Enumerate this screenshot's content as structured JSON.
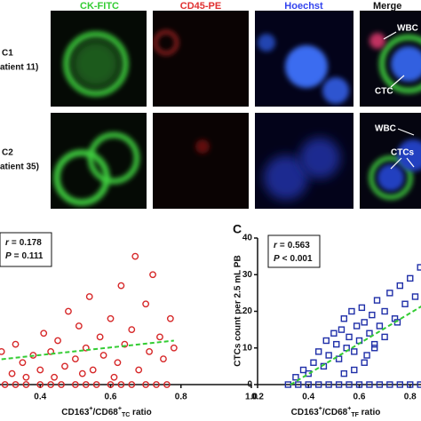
{
  "micrographs": {
    "columns": [
      "CK-FITC",
      "CD45-PE",
      "Hoechst",
      "Merge"
    ],
    "rows": [
      {
        "id": "C1",
        "patient": "atient 11)"
      },
      {
        "id": "C2",
        "patient": "atient 35)"
      }
    ],
    "annotations": [
      "WBC",
      "CTC",
      "WBC",
      "CTCs"
    ]
  },
  "chart_data": [
    {
      "type": "scatter",
      "marker": "circle",
      "color": "#d62728",
      "xlabel_parts": [
        "CD163",
        "+",
        "/CD68",
        "+",
        "TC",
        " ratio"
      ],
      "stats": [
        {
          "symbol": "r",
          "relation": "=",
          "value": 0.178
        },
        {
          "symbol": "P",
          "relation": "=",
          "value": 0.111
        }
      ],
      "xlim": [
        0.2,
        1.0
      ],
      "xticks": [
        0.4,
        0.6,
        0.8,
        {
          "value": 1.0,
          "label": "1.0"
        }
      ],
      "ylim": [
        0,
        40
      ],
      "x": [
        0.27,
        0.3,
        0.33,
        0.36,
        0.4,
        0.43,
        0.46,
        0.5,
        0.53,
        0.56,
        0.6,
        0.63,
        0.66,
        0.7,
        0.73,
        0.76,
        0.27,
        0.29,
        0.32,
        0.33,
        0.35,
        0.38,
        0.4,
        0.41,
        0.43,
        0.45,
        0.47,
        0.48,
        0.5,
        0.51,
        0.53,
        0.54,
        0.55,
        0.57,
        0.58,
        0.6,
        0.62,
        0.63,
        0.64,
        0.66,
        0.67,
        0.68,
        0.7,
        0.71,
        0.72,
        0.74,
        0.75,
        0.77,
        0.78,
        0.61,
        0.44,
        0.36,
        0.52
      ],
      "y": [
        0,
        0,
        0,
        0,
        0,
        0,
        0,
        0,
        0,
        0,
        0,
        0,
        0,
        0,
        0,
        0,
        5,
        9,
        3,
        11,
        6,
        8,
        4,
        14,
        9,
        12,
        5,
        20,
        7,
        16,
        10,
        24,
        4,
        13,
        8,
        18,
        6,
        27,
        11,
        15,
        35,
        4,
        22,
        9,
        30,
        13,
        7,
        18,
        10,
        2,
        2,
        2,
        3
      ],
      "fit": {
        "color": "#33cc33",
        "x": [
          0.25,
          0.78
        ],
        "y": [
          6.5,
          12
        ]
      }
    },
    {
      "type": "scatter",
      "marker": "square",
      "color": "#1f2fa8",
      "panel_label": "C",
      "ylabel": "CTCs count per 2.5 mL PB",
      "xlabel_parts": [
        "CD163",
        "+",
        "/CD68",
        "+",
        "TF",
        " ratio"
      ],
      "stats": [
        {
          "symbol": "r",
          "relation": "=",
          "value": 0.563
        },
        {
          "symbol": "P",
          "relation": "<",
          "value": 0.001
        }
      ],
      "xlim": [
        0.2,
        1.0
      ],
      "xticks": [
        0.2,
        0.4,
        0.6,
        0.8
      ],
      "ylim": [
        0,
        40
      ],
      "yticks": [
        0,
        10,
        20,
        30,
        40
      ],
      "x": [
        0.32,
        0.36,
        0.4,
        0.44,
        0.48,
        0.52,
        0.56,
        0.6,
        0.64,
        0.68,
        0.72,
        0.76,
        0.8,
        0.84,
        0.35,
        0.38,
        0.4,
        0.42,
        0.44,
        0.46,
        0.47,
        0.48,
        0.5,
        0.51,
        0.52,
        0.53,
        0.54,
        0.55,
        0.56,
        0.57,
        0.58,
        0.59,
        0.6,
        0.61,
        0.62,
        0.63,
        0.64,
        0.65,
        0.66,
        0.67,
        0.68,
        0.7,
        0.72,
        0.74,
        0.76,
        0.78,
        0.8,
        0.82,
        0.84,
        0.86,
        0.62,
        0.58,
        0.54,
        0.66,
        0.7,
        0.75
      ],
      "y": [
        0,
        0,
        0,
        0,
        0,
        0,
        0,
        0,
        0,
        0,
        0,
        0,
        0,
        0,
        2,
        4,
        3,
        6,
        9,
        5,
        12,
        8,
        14,
        11,
        7,
        15,
        18,
        10,
        13,
        20,
        9,
        16,
        12,
        21,
        17,
        8,
        14,
        19,
        11,
        23,
        16,
        20,
        25,
        18,
        27,
        22,
        29,
        24,
        32,
        35,
        6,
        4,
        3,
        10,
        13,
        17
      ],
      "fit": {
        "color": "#33cc33",
        "x": [
          0.33,
          0.86
        ],
        "y": [
          0,
          22
        ]
      }
    }
  ]
}
